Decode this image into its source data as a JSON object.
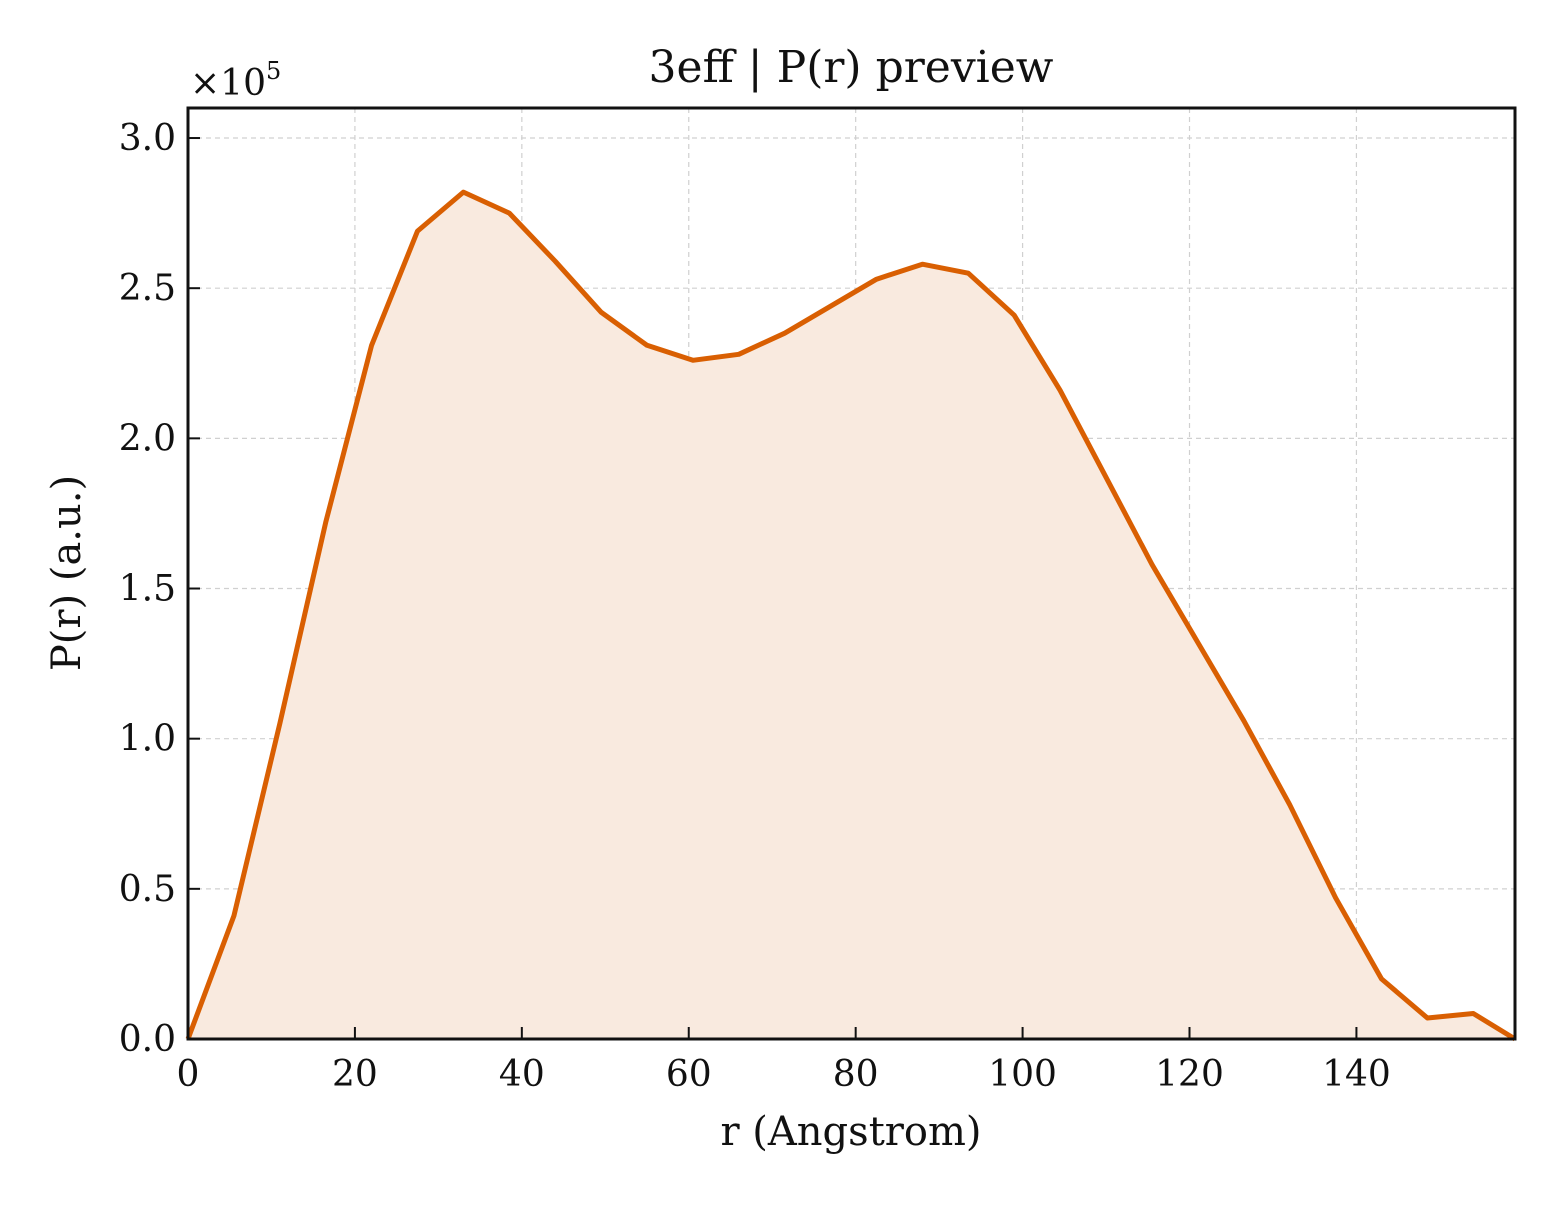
{
  "chart_data": {
    "type": "area",
    "title": "3eff | P(r) preview",
    "xlabel": "r (Angstrom)",
    "ylabel": "P(r) (a.u.)",
    "y_scale_label": "×10",
    "y_scale_exponent": "5",
    "xlim": [
      0,
      159
    ],
    "ylim": [
      0,
      3.1
    ],
    "y_multiplier": 100000,
    "grid": true,
    "xticks": [
      0,
      20,
      40,
      60,
      80,
      100,
      120,
      140
    ],
    "xtick_labels": [
      "0",
      "20",
      "40",
      "60",
      "80",
      "100",
      "120",
      "140"
    ],
    "yticks": [
      0,
      0.5,
      1.0,
      1.5,
      2.0,
      2.5,
      3.0
    ],
    "ytick_labels": [
      "0.0",
      "0.5",
      "1.0",
      "1.5",
      "2.0",
      "2.5",
      "3.0"
    ],
    "series": [
      {
        "color": "#d95f02",
        "fill_color": "#f9eadf",
        "x": [
          0,
          5.5,
          11,
          16.5,
          22,
          27.5,
          33,
          38.5,
          44,
          49.5,
          55,
          60.5,
          66,
          71.5,
          77,
          82.5,
          88,
          93.5,
          99,
          104.5,
          110,
          115.5,
          121,
          126.5,
          132,
          137.5,
          143,
          148.5,
          154,
          159
        ],
        "y": [
          0,
          0.41,
          1.05,
          1.72,
          2.31,
          2.69,
          2.82,
          2.75,
          2.59,
          2.42,
          2.31,
          2.26,
          2.28,
          2.35,
          2.44,
          2.53,
          2.58,
          2.55,
          2.41,
          2.16,
          1.87,
          1.58,
          1.32,
          1.06,
          0.78,
          0.47,
          0.2,
          0.07,
          0.085,
          0
        ]
      }
    ]
  }
}
